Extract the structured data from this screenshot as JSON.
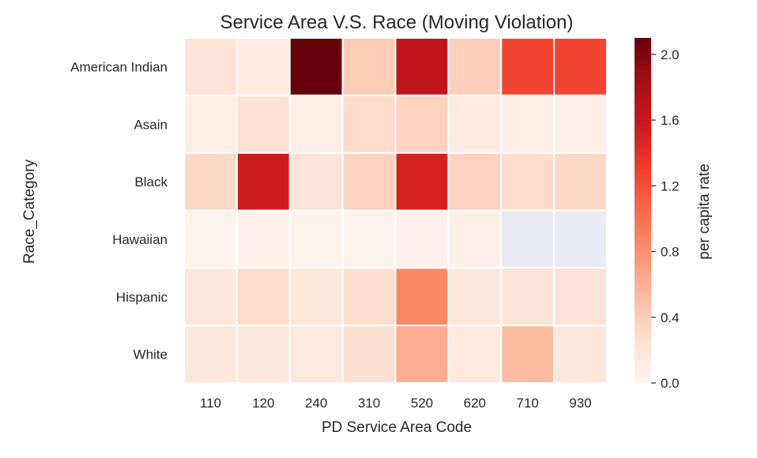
{
  "chart_data": {
    "type": "heatmap",
    "title": "Service Area V.S. Race (Moving Violation)",
    "xlabel": "PD Service Area Code",
    "ylabel": "Race_Category",
    "x": [
      "110",
      "120",
      "240",
      "310",
      "520",
      "620",
      "710",
      "930"
    ],
    "y": [
      "American Indian",
      "Asain",
      "Black",
      "Hawaiian",
      "Hispanic",
      "White"
    ],
    "values": [
      [
        0.22,
        0.13,
        2.1,
        0.4,
        1.65,
        0.38,
        1.25,
        1.25
      ],
      [
        0.08,
        0.25,
        0.08,
        0.3,
        0.36,
        0.12,
        0.08,
        0.07
      ],
      [
        0.32,
        1.55,
        0.22,
        0.36,
        1.5,
        0.36,
        0.3,
        0.32
      ],
      [
        0.03,
        0.04,
        0.03,
        0.02,
        0.05,
        0.05,
        null,
        null
      ],
      [
        0.17,
        0.3,
        0.18,
        0.28,
        0.85,
        0.17,
        0.22,
        0.23
      ],
      [
        0.18,
        0.18,
        0.15,
        0.26,
        0.62,
        0.15,
        0.52,
        0.18
      ]
    ],
    "colorbar": {
      "label": "per capita rate",
      "min": 0.0,
      "max": 2.1,
      "ticks": [
        "0.0",
        "0.4",
        "0.8",
        "1.2",
        "1.6",
        "2.0"
      ],
      "cmap": "Reds"
    },
    "missing_color": "#eaeaf2",
    "gridlines": "white"
  }
}
